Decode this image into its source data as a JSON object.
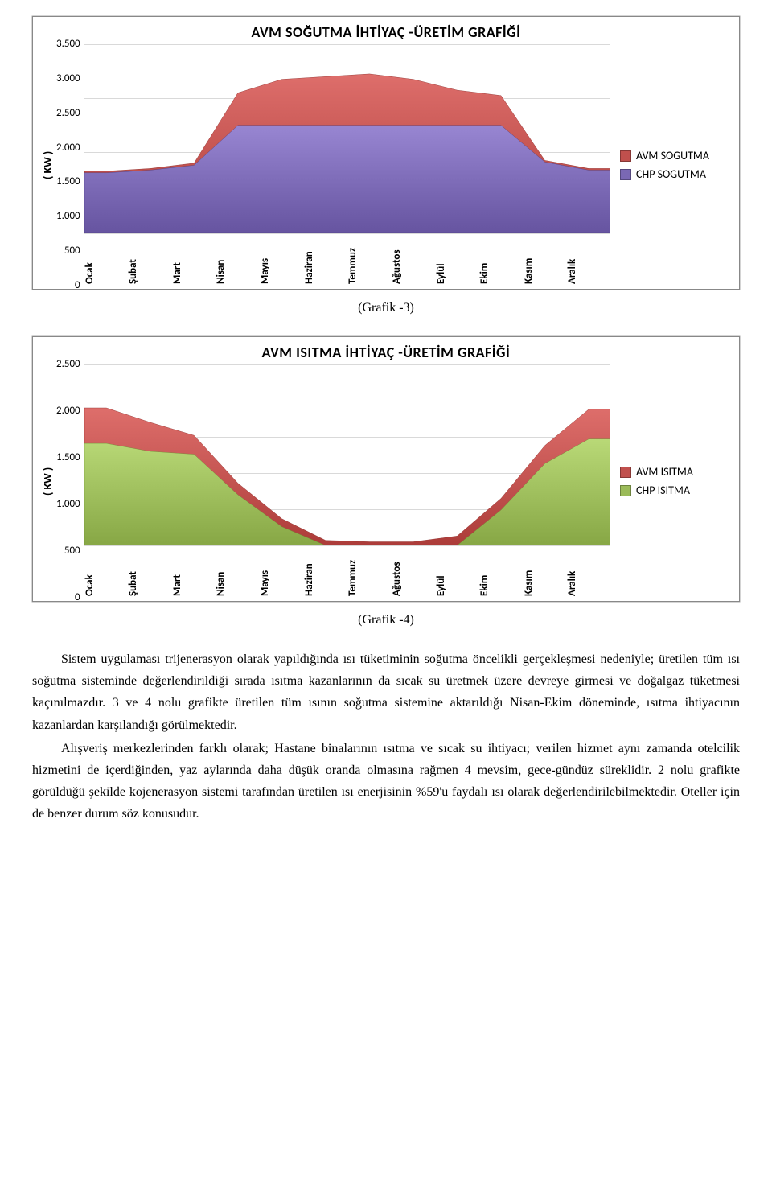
{
  "chart1": {
    "type": "area",
    "title": "AVM SOĞUTMA İHTİYAÇ -ÜRETİM GRAFİĞİ",
    "ylabel": "( KW )",
    "ylim": [
      0,
      3500
    ],
    "ytick_step": 500,
    "yticks": [
      "3.500",
      "3.000",
      "2.500",
      "2.000",
      "1.500",
      "1.000",
      "500",
      "0"
    ],
    "categories": [
      "Ocak",
      "Şubat",
      "Mart",
      "Nisan",
      "Mayıs",
      "Haziran",
      "Temmuz",
      "Ağustos",
      "Eylül",
      "Ekim",
      "Kasım",
      "Aralık"
    ],
    "series": [
      {
        "name": "AVM SOGUTMA",
        "color": "#c0504d",
        "stroke": "#8b2a27",
        "values": [
          1150,
          1200,
          1300,
          2600,
          2850,
          2900,
          2950,
          2850,
          2650,
          2550,
          1350,
          1200
        ]
      },
      {
        "name": "CHP SOGUTMA",
        "color": "#7a68b4",
        "stroke": "#4a3c7d",
        "values": [
          1120,
          1170,
          1260,
          2000,
          2000,
          2000,
          2000,
          2000,
          2000,
          2000,
          1320,
          1170
        ]
      }
    ],
    "grid_color": "#d9d9d9",
    "background": "#ffffff",
    "title_fontsize": 18,
    "label_fontsize": 13
  },
  "caption1": "(Grafik -3)",
  "chart2": {
    "type": "area",
    "title": "AVM ISITMA İHTİYAÇ -ÜRETİM GRAFİĞİ",
    "ylabel": "( KW )",
    "ylim": [
      0,
      2500
    ],
    "ytick_step": 500,
    "yticks": [
      "2.500",
      "2.000",
      "1.500",
      "1.000",
      "500",
      "0"
    ],
    "categories": [
      "Ocak",
      "Şubat",
      "Mart",
      "Nisan",
      "Mayıs",
      "Haziran",
      "Temmuz",
      "Ağustos",
      "Eylül",
      "Ekim",
      "Kasım",
      "Aralık"
    ],
    "series": [
      {
        "name": "AVM ISITMA",
        "color": "#c0504d",
        "stroke": "#8b2a27",
        "values": [
          1900,
          1700,
          1520,
          860,
          370,
          70,
          50,
          50,
          130,
          650,
          1380,
          1880
        ]
      },
      {
        "name": "CHP ISITMA",
        "color": "#9bbb59",
        "stroke": "#6b8a33",
        "values": [
          1410,
          1300,
          1260,
          700,
          260,
          0,
          0,
          0,
          0,
          490,
          1130,
          1470
        ]
      }
    ],
    "grid_color": "#d9d9d9",
    "background": "#ffffff",
    "title_fontsize": 18,
    "label_fontsize": 13
  },
  "caption2": "(Grafik -4)",
  "paragraphs": [
    "Sistem uygulaması trijenerasyon olarak yapıldığında ısı tüketiminin soğutma öncelikli gerçekleşmesi nedeniyle; üretilen tüm ısı soğutma sisteminde değerlendirildiği sırada ısıtma kazanlarının da sıcak su üretmek üzere devreye girmesi ve doğalgaz tüketmesi kaçınılmazdır. 3 ve 4 nolu grafikte üretilen tüm ısının soğutma sistemine aktarıldığı Nisan-Ekim döneminde, ısıtma ihtiyacının kazanlardan karşılandığı görülmektedir.",
    "Alışveriş merkezlerinden farklı olarak; Hastane binalarının ısıtma ve sıcak su ihtiyacı; verilen hizmet aynı zamanda otelcilik hizmetini de içerdiğinden, yaz aylarında daha düşük oranda olmasına rağmen 4 mevsim, gece-gündüz süreklidir. 2 nolu grafikte görüldüğü şekilde kojenerasyon sistemi tarafından üretilen ısı enerjisinin %59'u faydalı ısı olarak değerlendirilebilmektedir. Oteller için de benzer durum söz konusudur."
  ]
}
